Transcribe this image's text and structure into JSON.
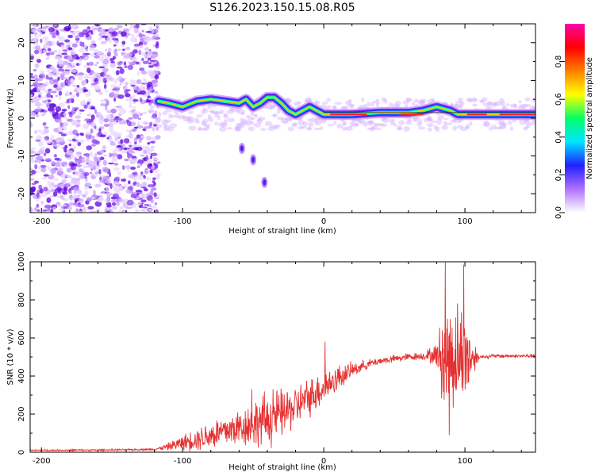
{
  "title": "S126.2023.150.15.08.R05",
  "colors": {
    "frame": "#000000",
    "snr_line": "#e53030",
    "spectrogram_noise": "#a060ff",
    "spectrogram_core": "#ff2020"
  },
  "colorbar": {
    "label": "Normalized spectral amplitude",
    "ticks": [
      "0.0",
      "0.2",
      "0.4",
      "0.6",
      "0.8"
    ],
    "range": [
      0,
      1
    ],
    "colormap": [
      "#ffffff",
      "#b070ff",
      "#2020ff",
      "#00e5ff",
      "#00ff66",
      "#ffff00",
      "#ff8000",
      "#ff0000",
      "#ff00aa"
    ]
  },
  "chart_data": [
    {
      "type": "heatmap",
      "title": "S126.2023.150.15.08.R05",
      "xlabel": "Height of straight line (km)",
      "ylabel": "Frequency (Hz)",
      "xlim": [
        -208,
        150
      ],
      "ylim": [
        -25,
        25
      ],
      "x_ticks": [
        "-200",
        "-100",
        "0",
        "100"
      ],
      "y_ticks": [
        "20",
        "10",
        "0",
        "-10",
        "-20"
      ],
      "grid": false,
      "noise_region_x": [
        -208,
        -117
      ],
      "signal_ridge": {
        "x": [
          -117,
          -110,
          -100,
          -90,
          -80,
          -70,
          -60,
          -55,
          -50,
          -45,
          -40,
          -35,
          -30,
          -25,
          -20,
          -15,
          -10,
          -5,
          0,
          10,
          20,
          40,
          60,
          70,
          80,
          90,
          95,
          100,
          110,
          120,
          130,
          140,
          150
        ],
        "frequency_hz": [
          4.5,
          4,
          3,
          4.5,
          5,
          4.5,
          4,
          5,
          3,
          4,
          5.5,
          5.5,
          4,
          2,
          1,
          2,
          3,
          2,
          1,
          1,
          1,
          1.5,
          1.5,
          2,
          3,
          2,
          1,
          1,
          1,
          1,
          1,
          1,
          1
        ]
      },
      "secondary_feature": {
        "x": [
          -58,
          -50,
          -42
        ],
        "frequency_hz": [
          -8,
          -11,
          -17
        ]
      },
      "colorbar_label": "Normalized spectral amplitude"
    },
    {
      "type": "line",
      "xlabel": "Height of straight line (km)",
      "ylabel": "SNR (10 * v/v)",
      "xlim": [
        -208,
        150
      ],
      "ylim": [
        0,
        1000
      ],
      "x_ticks": [
        "-200",
        "-100",
        "0",
        "100"
      ],
      "y_ticks": [
        "0",
        "200",
        "400",
        "600",
        "800",
        "1000"
      ],
      "grid": false,
      "series": [
        {
          "x": [
            -208,
            -150,
            -120,
            -110,
            -100,
            -90,
            -80,
            -70,
            -60,
            -50,
            -40,
            -30,
            -20,
            -10,
            0,
            10,
            20,
            30,
            40,
            50,
            60,
            70,
            80,
            85,
            90,
            95,
            100,
            110,
            120,
            130,
            140,
            150
          ],
          "trend": [
            10,
            12,
            15,
            30,
            50,
            70,
            90,
            110,
            130,
            150,
            170,
            200,
            240,
            290,
            340,
            390,
            430,
            460,
            480,
            490,
            500,
            505,
            510,
            500,
            510,
            505,
            500,
            500,
            505,
            505,
            505,
            505
          ],
          "amplitude": [
            4,
            4,
            5,
            20,
            40,
            60,
            80,
            90,
            100,
            120,
            150,
            130,
            110,
            100,
            90,
            70,
            40,
            25,
            20,
            20,
            20,
            20,
            60,
            300,
            300,
            280,
            250,
            10,
            10,
            10,
            10,
            10
          ],
          "peaks": [
            {
              "x": 1,
              "y": 580
            },
            {
              "x": -36,
              "y": 330
            },
            {
              "x": -51,
              "y": 330
            },
            {
              "x": 86,
              "y": 1000
            },
            {
              "x": 99,
              "y": 985
            },
            {
              "x": 89,
              "y": 90
            }
          ]
        }
      ]
    }
  ]
}
